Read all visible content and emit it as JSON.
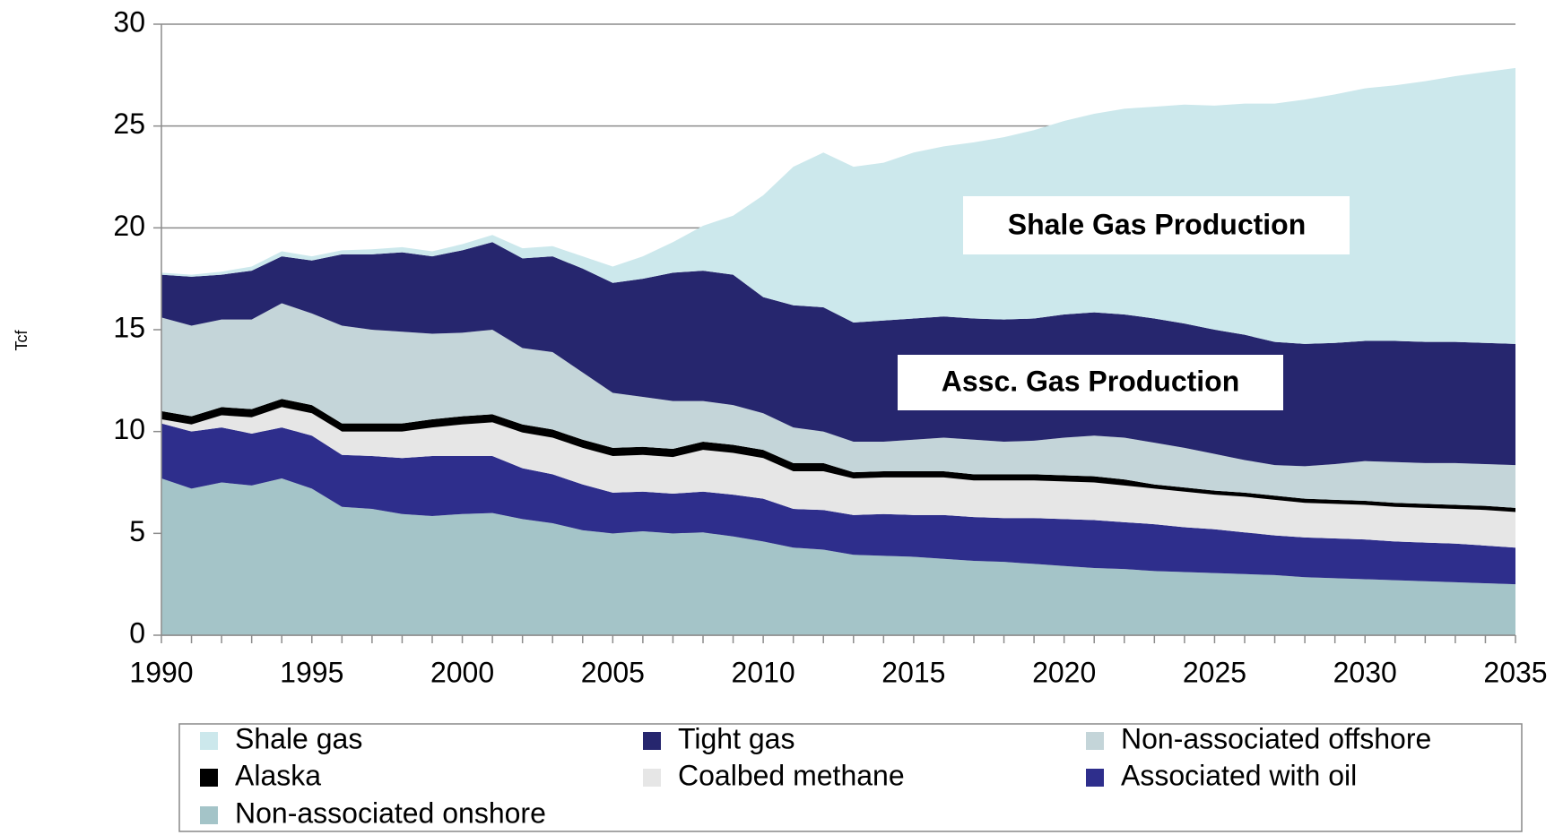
{
  "chart_data": {
    "type": "stacked_area",
    "y_label": "Tcf",
    "annotations": [
      "Shale Gas Production",
      "Assc. Gas Production"
    ],
    "x": [
      1990,
      1991,
      1992,
      1993,
      1994,
      1995,
      1996,
      1997,
      1998,
      1999,
      2000,
      2001,
      2002,
      2003,
      2004,
      2005,
      2006,
      2007,
      2008,
      2009,
      2010,
      2011,
      2012,
      2013,
      2014,
      2015,
      2016,
      2017,
      2018,
      2019,
      2020,
      2021,
      2022,
      2023,
      2024,
      2025,
      2026,
      2027,
      2028,
      2029,
      2030,
      2031,
      2032,
      2033,
      2034,
      2035
    ],
    "xlim": [
      1990,
      2035
    ],
    "xticks": [
      1990,
      1995,
      2000,
      2005,
      2010,
      2015,
      2020,
      2025,
      2030,
      2035
    ],
    "ylim": [
      0,
      30
    ],
    "yticks": [
      0,
      5,
      10,
      15,
      20,
      25,
      30
    ],
    "grid": true,
    "legend": "bottom",
    "series": [
      {
        "name": "Shale gas",
        "color": "#cce8ec",
        "values": [
          0.1,
          0.1,
          0.15,
          0.2,
          0.25,
          0.2,
          0.2,
          0.25,
          0.25,
          0.25,
          0.3,
          0.35,
          0.5,
          0.5,
          0.6,
          0.8,
          1.1,
          1.5,
          2.2,
          2.9,
          5.0,
          6.8,
          7.6,
          7.65,
          7.75,
          8.15,
          8.35,
          8.65,
          8.95,
          9.25,
          9.5,
          9.75,
          10.1,
          10.4,
          10.75,
          11.0,
          11.35,
          11.7,
          12.0,
          12.2,
          12.4,
          12.55,
          12.8,
          13.05,
          13.3,
          13.55
        ]
      },
      {
        "name": "Tight gas",
        "color": "#26266e",
        "values": [
          2.1,
          2.4,
          2.2,
          2.4,
          2.3,
          2.6,
          3.5,
          3.7,
          3.9,
          3.8,
          4.05,
          4.3,
          4.4,
          4.7,
          5.1,
          5.4,
          5.8,
          6.3,
          6.4,
          6.4,
          5.7,
          6.0,
          6.1,
          5.85,
          5.95,
          5.95,
          5.95,
          5.95,
          6.0,
          6.0,
          6.05,
          6.05,
          6.05,
          6.1,
          6.1,
          6.1,
          6.15,
          6.05,
          6.0,
          5.95,
          5.9,
          5.95,
          5.95,
          5.95,
          5.95,
          5.95
        ]
      },
      {
        "name": "Non-associated offshore",
        "color": "#c4d5d9",
        "values": [
          4.6,
          4.45,
          4.3,
          4.4,
          4.7,
          4.5,
          4.8,
          4.6,
          4.5,
          4.2,
          4.1,
          4.15,
          3.75,
          3.8,
          3.3,
          2.7,
          2.45,
          2.35,
          2.0,
          1.95,
          1.8,
          1.75,
          1.55,
          1.5,
          1.45,
          1.55,
          1.65,
          1.7,
          1.6,
          1.65,
          1.85,
          2.0,
          2.05,
          2.05,
          1.95,
          1.8,
          1.6,
          1.5,
          1.6,
          1.75,
          1.95,
          2.0,
          2.0,
          2.05,
          2.05,
          2.1
        ]
      },
      {
        "name": "Alaska",
        "color": "#000000",
        "values": [
          0.4,
          0.4,
          0.4,
          0.4,
          0.4,
          0.4,
          0.4,
          0.4,
          0.4,
          0.4,
          0.4,
          0.4,
          0.4,
          0.4,
          0.4,
          0.4,
          0.4,
          0.4,
          0.4,
          0.4,
          0.4,
          0.4,
          0.4,
          0.3,
          0.3,
          0.3,
          0.3,
          0.3,
          0.3,
          0.3,
          0.3,
          0.3,
          0.3,
          0.2,
          0.2,
          0.2,
          0.2,
          0.2,
          0.2,
          0.2,
          0.2,
          0.2,
          0.2,
          0.2,
          0.2,
          0.2
        ]
      },
      {
        "name": "Coalbed methane",
        "color": "#e6e6e6",
        "values": [
          0.2,
          0.35,
          0.6,
          0.8,
          1.0,
          1.1,
          1.15,
          1.2,
          1.3,
          1.4,
          1.55,
          1.65,
          1.75,
          1.8,
          1.8,
          1.8,
          1.8,
          1.8,
          2.05,
          2.05,
          2.0,
          1.85,
          1.9,
          1.8,
          1.8,
          1.85,
          1.85,
          1.8,
          1.85,
          1.85,
          1.85,
          1.85,
          1.8,
          1.75,
          1.75,
          1.7,
          1.75,
          1.75,
          1.7,
          1.7,
          1.7,
          1.7,
          1.7,
          1.7,
          1.75,
          1.75
        ]
      },
      {
        "name": "Associated with oil",
        "color": "#2e2e8c",
        "values": [
          2.7,
          2.8,
          2.7,
          2.55,
          2.5,
          2.6,
          2.55,
          2.6,
          2.75,
          2.95,
          2.85,
          2.8,
          2.5,
          2.4,
          2.25,
          2.0,
          1.95,
          1.95,
          2.0,
          2.05,
          2.1,
          1.9,
          1.95,
          1.95,
          2.05,
          2.05,
          2.15,
          2.15,
          2.15,
          2.25,
          2.3,
          2.35,
          2.3,
          2.3,
          2.2,
          2.15,
          2.05,
          1.95,
          1.95,
          1.95,
          1.95,
          1.9,
          1.9,
          1.9,
          1.85,
          1.8
        ]
      },
      {
        "name": "Non-associated onshore",
        "color": "#a4c4c8",
        "values": [
          7.7,
          7.2,
          7.5,
          7.35,
          7.7,
          7.2,
          6.3,
          6.2,
          5.95,
          5.85,
          5.95,
          6.0,
          5.7,
          5.5,
          5.15,
          5.0,
          5.1,
          5.0,
          5.05,
          4.85,
          4.6,
          4.3,
          4.2,
          3.95,
          3.9,
          3.85,
          3.75,
          3.65,
          3.6,
          3.5,
          3.4,
          3.3,
          3.25,
          3.15,
          3.1,
          3.05,
          3.0,
          2.95,
          2.85,
          2.8,
          2.75,
          2.7,
          2.65,
          2.6,
          2.55,
          2.5
        ]
      }
    ]
  }
}
